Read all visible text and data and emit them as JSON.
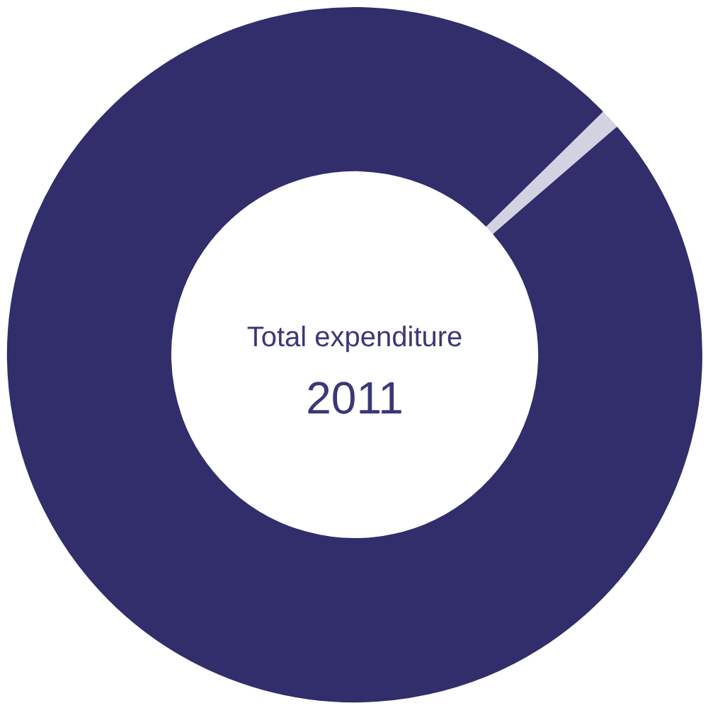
{
  "chart_data": {
    "type": "donut",
    "title": "Total expenditure",
    "subtitle": "2011",
    "categories": [
      null,
      null
    ],
    "values": [
      1,
      99
    ],
    "colors": [
      "#d3d2e2",
      "#312e6b"
    ]
  }
}
